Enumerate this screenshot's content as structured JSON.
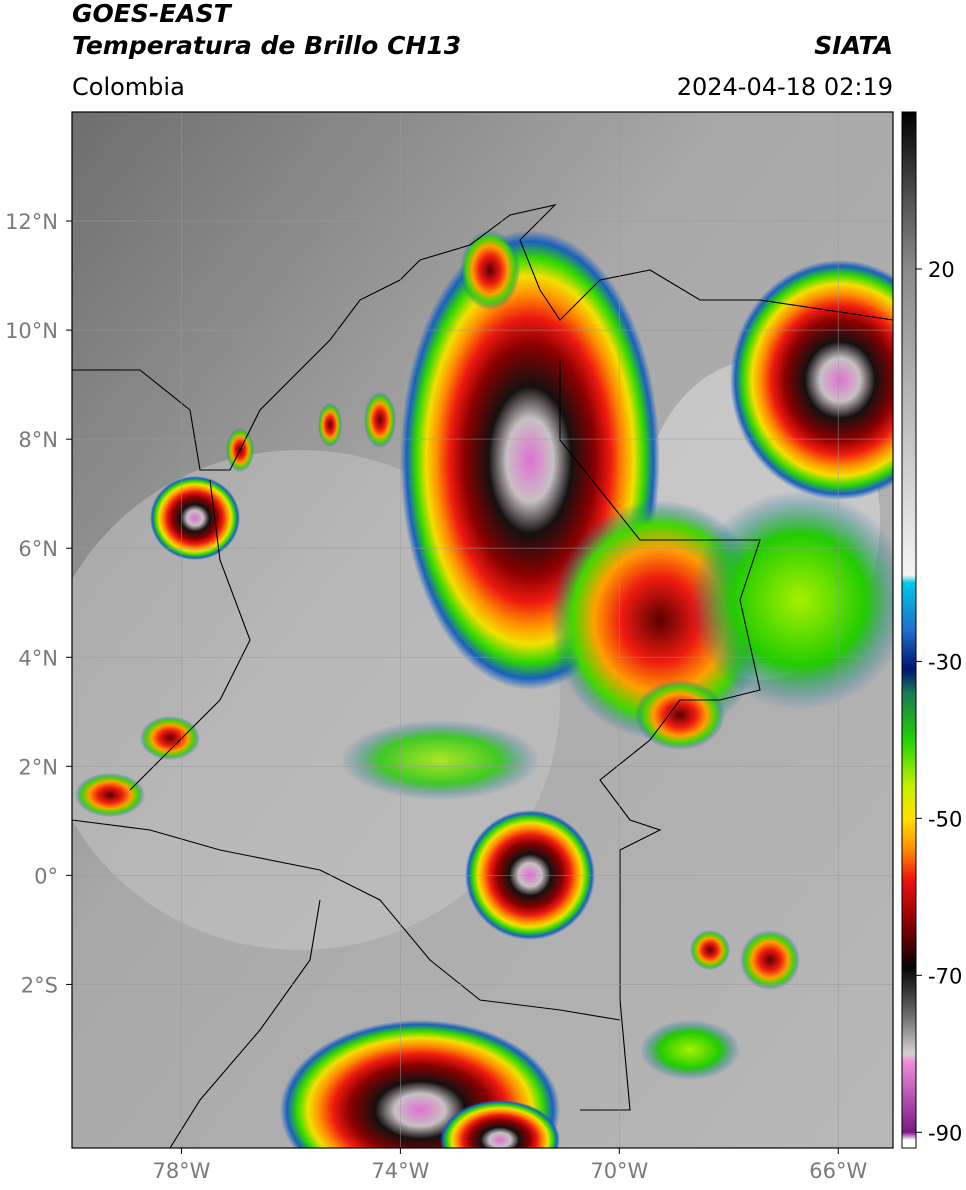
{
  "header": {
    "title": "GOES-EAST",
    "subtitle": "Temperatura de Brillo CH13",
    "source": "SIATA",
    "region": "Colombia",
    "datetime": "2024-04-18 02:19"
  },
  "map": {
    "xlim": [
      -80,
      -65
    ],
    "ylim": [
      -5,
      14
    ],
    "grid": true,
    "xticks": [
      {
        "value": -78,
        "label": "78°W"
      },
      {
        "value": -74,
        "label": "74°W"
      },
      {
        "value": -70,
        "label": "70°W"
      },
      {
        "value": -66,
        "label": "66°W"
      }
    ],
    "yticks": [
      {
        "value": 12,
        "label": "12°N"
      },
      {
        "value": 10,
        "label": "10°N"
      },
      {
        "value": 8,
        "label": "8°N"
      },
      {
        "value": 6,
        "label": "6°N"
      },
      {
        "value": 4,
        "label": "4°N"
      },
      {
        "value": 2,
        "label": "2°N"
      },
      {
        "value": 0,
        "label": "0°"
      },
      {
        "value": -2,
        "label": "2°S"
      }
    ]
  },
  "colorbar": {
    "lim": [
      -92,
      40
    ],
    "ticks": [
      20,
      -30,
      -50,
      -70,
      -90
    ],
    "stops": [
      {
        "value": 40,
        "color": "#000000"
      },
      {
        "value": 30,
        "color": "#4a4a4a"
      },
      {
        "value": 20,
        "color": "#8a8a8a"
      },
      {
        "value": -19,
        "color": "#f4f4f4"
      },
      {
        "value": -20,
        "color": "#00c8e6"
      },
      {
        "value": -26,
        "color": "#1f6fd0"
      },
      {
        "value": -31,
        "color": "#00136e"
      },
      {
        "value": -34,
        "color": "#1a7a56"
      },
      {
        "value": -40,
        "color": "#22d400"
      },
      {
        "value": -46,
        "color": "#c8f000"
      },
      {
        "value": -50,
        "color": "#ffe100"
      },
      {
        "value": -54,
        "color": "#ff8c00"
      },
      {
        "value": -58,
        "color": "#ee1010"
      },
      {
        "value": -64,
        "color": "#7a0000"
      },
      {
        "value": -69,
        "color": "#050505"
      },
      {
        "value": -75,
        "color": "#6a6a6a"
      },
      {
        "value": -80,
        "color": "#d6d0d4"
      },
      {
        "value": -81,
        "color": "#ee8ed8"
      },
      {
        "value": -90,
        "color": "#7a1a86"
      },
      {
        "value": -91,
        "color": "#ffffff"
      }
    ]
  }
}
